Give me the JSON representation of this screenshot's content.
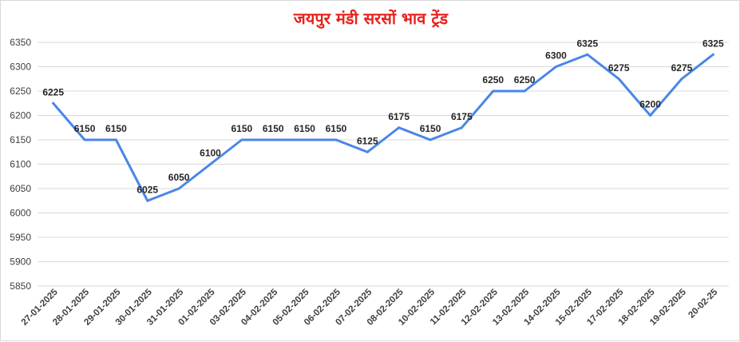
{
  "chart_data": {
    "type": "line",
    "title": "जयपुर मंडी सरसों भाव ट्रेंड",
    "xlabel": "",
    "ylabel": "",
    "ylim": [
      5850,
      6350
    ],
    "yticks": [
      5850,
      5900,
      5950,
      6000,
      6050,
      6100,
      6150,
      6200,
      6250,
      6300,
      6350
    ],
    "grid": true,
    "legend": "none",
    "line_color": "#4a86e8",
    "title_color": "#e8211b",
    "categories": [
      "27-01-2025",
      "28-01-2025",
      "29-01-2025",
      "30-01-2025",
      "31-01-2025",
      "01-02-2025",
      "03-02-2025",
      "04-02-2025",
      "05-02-2025",
      "06-02-2025",
      "07-02-2025",
      "08-02-2025",
      "10-02-2025",
      "11-02-2025",
      "12-02-2025",
      "13-02-2025",
      "14-02-2025",
      "15-02-2025",
      "17-02-2025",
      "18-02-2025",
      "19-02-2025",
      "20-02-25"
    ],
    "values": [
      6225,
      6150,
      6150,
      6025,
      6050,
      6100,
      6150,
      6150,
      6150,
      6150,
      6125,
      6175,
      6150,
      6175,
      6250,
      6250,
      6300,
      6325,
      6275,
      6200,
      6275,
      6325
    ]
  }
}
